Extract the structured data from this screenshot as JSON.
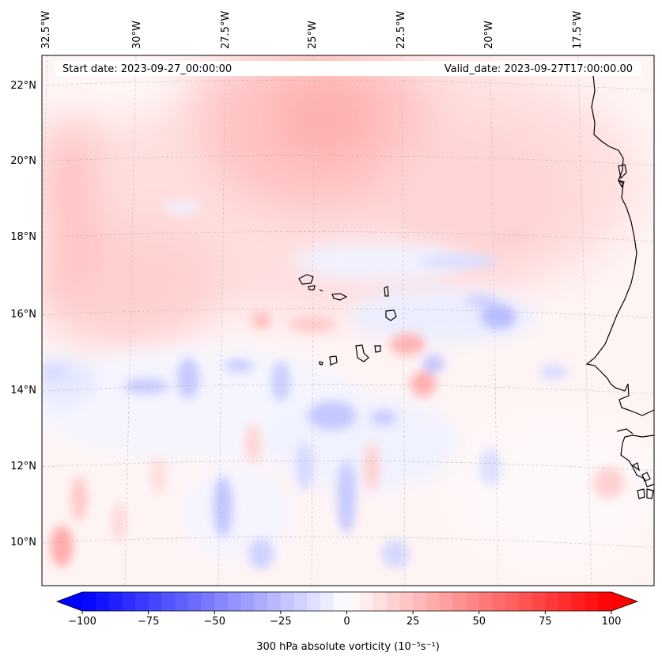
{
  "header": {
    "start_date": "Start date: 2023-09-27_00:00:00",
    "valid_date": "Valid_date: 2023-09-27T17:00:00.00"
  },
  "longitude_labels": [
    "32.5°W",
    "30°W",
    "27.5°W",
    "25°W",
    "22.5°W",
    "20°W",
    "17.5°W"
  ],
  "latitude_labels": [
    "22°N",
    "20°N",
    "18°N",
    "16°N",
    "14°N",
    "12°N",
    "10°N"
  ],
  "colorbar": {
    "label": "300 hPa absolute vorticity (10⁻⁵s⁻¹)",
    "ticks": [
      "−100",
      "−75",
      "−50",
      "−25",
      "0",
      "25",
      "50",
      "75",
      "100"
    ],
    "min": -100,
    "max": 100,
    "colormap": "bwr",
    "low_color": "#0000ff",
    "mid_color": "#ffffff",
    "high_color": "#ff0000"
  }
}
